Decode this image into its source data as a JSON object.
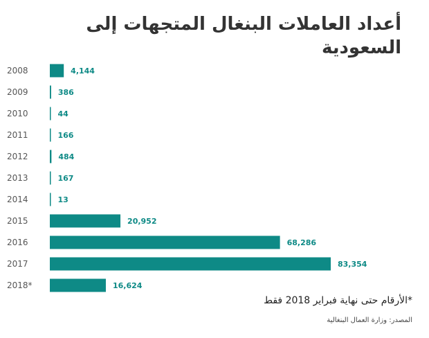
{
  "title": "أعداد العاملات البنغال المتجهات إلى السعودية",
  "footnote": "*الأرقام حتى نهاية فبراير 2018 فقط",
  "source": "المصدر: وزارة العمال البنغالية",
  "colors": {
    "bar": "#0e8a86",
    "value_text": "#0e8a86",
    "axis_text": "#555555",
    "title_text": "#333333"
  },
  "chart_data": {
    "type": "bar",
    "orientation": "horizontal",
    "title": "أعداد العاملات البنغال المتجهات إلى السعودية",
    "xlabel": "",
    "ylabel": "",
    "categories": [
      "2008",
      "2009",
      "2010",
      "2011",
      "2012",
      "2013",
      "2014",
      "2015",
      "2016",
      "2017",
      "2018*"
    ],
    "values": [
      4144,
      386,
      44,
      166,
      484,
      167,
      13,
      20952,
      68286,
      83354,
      16624
    ],
    "value_labels": [
      "4,144",
      "386",
      "44",
      "166",
      "484",
      "167",
      "13",
      "20,952",
      "68,286",
      "83,354",
      "16,624"
    ],
    "xlim": [
      0,
      83354
    ],
    "grid": false,
    "legend": "none"
  }
}
